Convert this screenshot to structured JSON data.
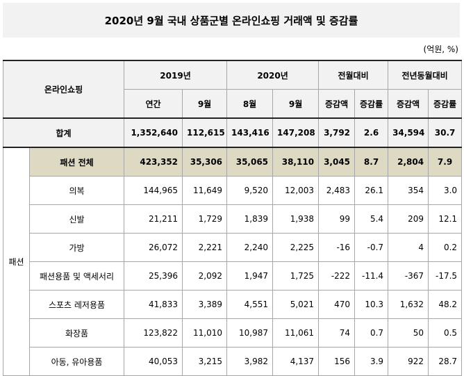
{
  "title": "2020년 9월 국내 상품군별 온라인쇼핑 거래액 및 증감률",
  "unit": "(억원, %)",
  "header": {
    "corner": "온라인쇼핑",
    "groups": [
      "2019년",
      "2020년",
      "전월대비",
      "전년동월대비"
    ],
    "subs": [
      "연간",
      "9월",
      "8월",
      "9월",
      "증감액",
      "증감률",
      "증감액",
      "증감률"
    ]
  },
  "total": {
    "label": "합계",
    "values": [
      "1,352,640",
      "112,615",
      "143,416",
      "147,208",
      "3,792",
      "2.6",
      "34,594",
      "30.7"
    ]
  },
  "side_label": "패션",
  "fashion_total": {
    "label": "패션 전체",
    "values": [
      "423,352",
      "35,306",
      "35,065",
      "38,110",
      "3,045",
      "8.7",
      "2,804",
      "7.9"
    ]
  },
  "rows": [
    {
      "label": "의복",
      "values": [
        "144,965",
        "11,649",
        "9,520",
        "12,003",
        "2,483",
        "26.1",
        "354",
        "3.0"
      ]
    },
    {
      "label": "신발",
      "values": [
        "21,211",
        "1,729",
        "1,839",
        "1,938",
        "99",
        "5.4",
        "209",
        "12.1"
      ]
    },
    {
      "label": "가방",
      "values": [
        "26,072",
        "2,221",
        "2,240",
        "2,225",
        "-16",
        "-0.7",
        "4",
        "0.2"
      ]
    },
    {
      "label": "패션용품 및 액세서리",
      "values": [
        "25,396",
        "2,092",
        "1,947",
        "1,725",
        "-222",
        "-11.4",
        "-367",
        "-17.5"
      ]
    },
    {
      "label": "스포츠 레저용품",
      "values": [
        "41,833",
        "3,389",
        "4,551",
        "5,021",
        "470",
        "10.3",
        "1,632",
        "48.2"
      ]
    },
    {
      "label": "화장품",
      "values": [
        "123,822",
        "11,010",
        "10,987",
        "11,061",
        "74",
        "0.7",
        "50",
        "0.5"
      ]
    },
    {
      "label": "아동, 유아용품",
      "values": [
        "40,053",
        "3,215",
        "3,982",
        "4,137",
        "156",
        "3.9",
        "922",
        "28.7"
      ]
    }
  ]
}
